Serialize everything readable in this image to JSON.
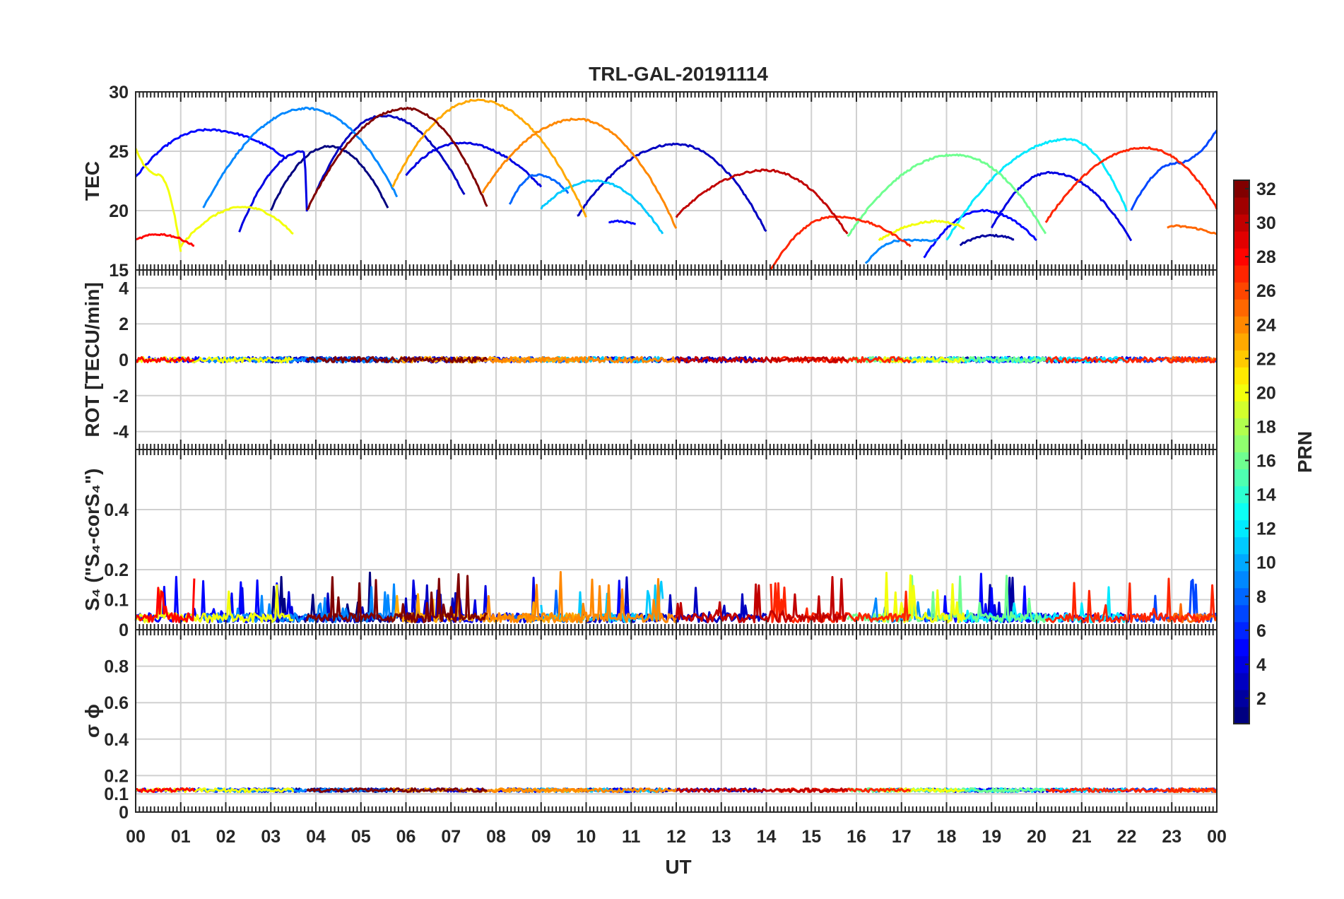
{
  "chart_data": {
    "type": "line",
    "title": "TRL-GAL-20191114",
    "xlabel": "UT",
    "x_range_hours": [
      0,
      24
    ],
    "x_tick_labels": [
      "00",
      "01",
      "02",
      "03",
      "04",
      "05",
      "06",
      "07",
      "08",
      "09",
      "10",
      "11",
      "12",
      "13",
      "14",
      "15",
      "16",
      "17",
      "18",
      "19",
      "20",
      "21",
      "22",
      "23",
      "00"
    ],
    "colorbar": {
      "label": "PRN",
      "range": [
        1,
        32
      ],
      "ticks": [
        "2",
        "4",
        "6",
        "8",
        "10",
        "12",
        "14",
        "16",
        "18",
        "20",
        "22",
        "24",
        "26",
        "28",
        "30",
        "32"
      ],
      "colormap": "jet"
    },
    "panels": [
      {
        "name": "TEC",
        "ylabel": "TEC",
        "ylim": [
          15,
          30
        ],
        "yticks": [
          "15",
          "20",
          "25",
          "30"
        ]
      },
      {
        "name": "ROT",
        "ylabel": "ROT [TECU/min]",
        "ylim": [
          -5,
          5
        ],
        "yticks": [
          "-4",
          "-2",
          "0",
          "2",
          "4"
        ]
      },
      {
        "name": "S4",
        "ylabel": "S₄ (\"S₄-corS₄\")",
        "ylim": [
          0,
          0.6
        ],
        "yticks": [
          "0",
          "0.1",
          "0.2",
          "0.4"
        ]
      },
      {
        "name": "sigma_phi",
        "ylabel": "σ ϕ",
        "ylim": [
          0,
          1
        ],
        "yticks": [
          "0",
          "0.1",
          "0.2",
          "0.4",
          "0.6",
          "0.8"
        ]
      }
    ],
    "series": [
      {
        "prn": 1,
        "tec_arc": {
          "start": 3.0,
          "peak": 4.3,
          "end": 5.6,
          "start_val": 20.0,
          "peak_val": 25.4,
          "end_val": 20.2
        }
      },
      {
        "prn": 2,
        "tec_arc": {
          "start": 18.3,
          "peak": 19.0,
          "end": 19.5,
          "start_val": 17.1,
          "peak_val": 17.9,
          "end_val": 17.6
        }
      },
      {
        "prn": 3,
        "tec_arc": {
          "start": 4.0,
          "peak": 5.5,
          "end": 7.3,
          "start_val": 21.5,
          "peak_val": 28.0,
          "end_val": 21.3
        }
      },
      {
        "prn": 3,
        "tec_arc": {
          "start": 9.8,
          "peak": 12.0,
          "end": 14.0,
          "start_val": 19.5,
          "peak_val": 25.6,
          "end_val": 18.2
        }
      },
      {
        "prn": 4,
        "tec_arc": {
          "start": 2.3,
          "peak": 4.0,
          "end": 3.8,
          "start_val": 18.2,
          "peak_val": 25.0,
          "end_val": 20.0
        }
      },
      {
        "prn": 4,
        "tec_arc": {
          "start": 6.0,
          "peak": 7.2,
          "end": 9.0,
          "start_val": 23.0,
          "peak_val": 25.7,
          "end_val": 22.0
        }
      },
      {
        "prn": 4,
        "tec_arc": {
          "start": 19.0,
          "peak": 20.3,
          "end": 22.1,
          "start_val": 18.5,
          "peak_val": 23.2,
          "end_val": 17.5
        }
      },
      {
        "prn": 5,
        "tec_arc": {
          "start": 0.0,
          "peak": 1.6,
          "end": 3.3,
          "start_val": 22.8,
          "peak_val": 26.8,
          "end_val": 24.5
        }
      },
      {
        "prn": 5,
        "tec_arc": {
          "start": 10.5,
          "peak": 10.7,
          "end": 11.1,
          "start_val": 19.0,
          "peak_val": 19.1,
          "end_val": 18.8
        }
      },
      {
        "prn": 5,
        "tec_arc": {
          "start": 17.5,
          "peak": 18.8,
          "end": 20.0,
          "start_val": 16.0,
          "peak_val": 20.0,
          "end_val": 17.5
        }
      },
      {
        "prn": 7,
        "tec_arc": {
          "start": 22.1,
          "peak": 23.1,
          "end": 24.0,
          "start_val": 20.0,
          "peak_val": 24.0,
          "end_val": 26.8
        }
      },
      {
        "prn": 8,
        "tec_arc": {
          "start": 8.3,
          "peak": 8.9,
          "end": 9.6,
          "start_val": 20.5,
          "peak_val": 23.0,
          "end_val": 21.5
        }
      },
      {
        "prn": 9,
        "tec_arc": {
          "start": 1.5,
          "peak": 3.8,
          "end": 5.8,
          "start_val": 20.2,
          "peak_val": 28.6,
          "end_val": 21.2
        }
      },
      {
        "prn": 9,
        "tec_arc": {
          "start": 16.2,
          "peak": 17.0,
          "end": 17.8,
          "start_val": 15.5,
          "peak_val": 17.5,
          "end_val": 17.5
        }
      },
      {
        "prn": 11,
        "tec_arc": {
          "start": 9.0,
          "peak": 10.2,
          "end": 11.7,
          "start_val": 20.2,
          "peak_val": 22.5,
          "end_val": 18.0
        }
      },
      {
        "prn": 12,
        "tec_arc": {
          "start": 18.0,
          "peak": 20.7,
          "end": 22.0,
          "start_val": 17.5,
          "peak_val": 26.0,
          "end_val": 20.0
        }
      },
      {
        "prn": 16,
        "tec_arc": {
          "start": 15.8,
          "peak": 18.2,
          "end": 20.2,
          "start_val": 17.8,
          "peak_val": 24.7,
          "end_val": 18.0
        }
      },
      {
        "prn": 20,
        "tec_arc": {
          "start": 0.0,
          "peak": 0.5,
          "end": 1.0,
          "start_val": 25.2,
          "peak_val": 23.0,
          "end_val": 16.5
        }
      },
      {
        "prn": 20,
        "tec_arc": {
          "start": 1.0,
          "peak": 2.4,
          "end": 3.5,
          "start_val": 17.0,
          "peak_val": 20.3,
          "end_val": 18.0
        }
      },
      {
        "prn": 20,
        "tec_arc": {
          "start": 16.5,
          "peak": 17.8,
          "end": 18.4,
          "start_val": 17.5,
          "peak_val": 19.1,
          "end_val": 18.5
        }
      },
      {
        "prn": 23,
        "tec_arc": {
          "start": 5.7,
          "peak": 7.6,
          "end": 10.0,
          "start_val": 22.0,
          "peak_val": 29.3,
          "end_val": 19.5
        }
      },
      {
        "prn": 24,
        "tec_arc": {
          "start": 7.7,
          "peak": 9.8,
          "end": 12.0,
          "start_val": 21.5,
          "peak_val": 27.7,
          "end_val": 18.5
        }
      },
      {
        "prn": 25,
        "tec_arc": {
          "start": 22.9,
          "peak": 23.0,
          "end": 24.0,
          "start_val": 18.5,
          "peak_val": 18.7,
          "end_val": 18.0
        }
      },
      {
        "prn": 27,
        "tec_arc": {
          "start": 14.1,
          "peak": 15.5,
          "end": 17.2,
          "start_val": 15.0,
          "peak_val": 19.5,
          "end_val": 17.0
        }
      },
      {
        "prn": 27,
        "tec_arc": {
          "start": 20.2,
          "peak": 22.4,
          "end": 24.0,
          "start_val": 19.0,
          "peak_val": 25.3,
          "end_val": 20.2
        }
      },
      {
        "prn": 28,
        "tec_arc": {
          "start": 0.0,
          "peak": 0.5,
          "end": 1.3,
          "start_val": 17.5,
          "peak_val": 18.0,
          "end_val": 17.0
        }
      },
      {
        "prn": 30,
        "tec_arc": {
          "start": 12.0,
          "peak": 14.0,
          "end": 15.8,
          "start_val": 19.5,
          "peak_val": 23.4,
          "end_val": 18.0
        }
      },
      {
        "prn": 32,
        "tec_arc": {
          "start": 3.8,
          "peak": 6.0,
          "end": 7.8,
          "start_val": 20.0,
          "peak_val": 28.6,
          "end_val": 20.3
        }
      }
    ],
    "rot_typical": {
      "mean": 0.0,
      "spread": 0.15
    },
    "s4_typical": {
      "baseline": 0.04,
      "max_spikes": 0.18
    },
    "sigma_phi_typical": {
      "level": 0.12,
      "spread": 0.01
    }
  }
}
